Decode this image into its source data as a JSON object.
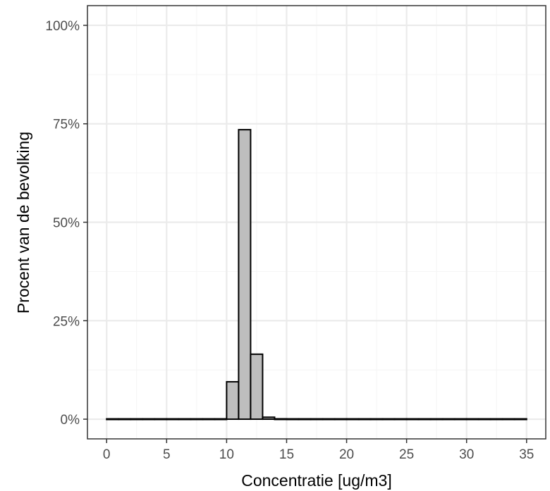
{
  "chart_data": {
    "type": "bar",
    "subtype": "histogram",
    "xlabel": "Concentratie [ug/m3]",
    "ylabel": "Procent van de bevolking",
    "xlim": [
      -1.6,
      36.6
    ],
    "ylim": [
      -0.05,
      1.05
    ],
    "x_ticks": [
      0,
      5,
      10,
      15,
      20,
      25,
      30,
      35
    ],
    "x_tick_labels": [
      "0",
      "5",
      "10",
      "15",
      "20",
      "25",
      "30",
      "35"
    ],
    "y_ticks": [
      0,
      0.25,
      0.5,
      0.75,
      1.0
    ],
    "y_tick_labels": [
      "0%",
      "25%",
      "50%",
      "75%",
      "100%"
    ],
    "y_minor_ticks": [
      0.125,
      0.375,
      0.625,
      0.875
    ],
    "grid": true,
    "bin_width": 1,
    "bins": [
      {
        "x0": 0,
        "x1": 1,
        "value": 0
      },
      {
        "x0": 1,
        "x1": 2,
        "value": 0
      },
      {
        "x0": 2,
        "x1": 3,
        "value": 0
      },
      {
        "x0": 3,
        "x1": 4,
        "value": 0
      },
      {
        "x0": 4,
        "x1": 5,
        "value": 0
      },
      {
        "x0": 5,
        "x1": 6,
        "value": 0
      },
      {
        "x0": 6,
        "x1": 7,
        "value": 0
      },
      {
        "x0": 7,
        "x1": 8,
        "value": 0
      },
      {
        "x0": 8,
        "x1": 9,
        "value": 0
      },
      {
        "x0": 9,
        "x1": 10,
        "value": 0
      },
      {
        "x0": 10,
        "x1": 11,
        "value": 0.095
      },
      {
        "x0": 11,
        "x1": 12,
        "value": 0.735
      },
      {
        "x0": 12,
        "x1": 13,
        "value": 0.165
      },
      {
        "x0": 13,
        "x1": 14,
        "value": 0.005
      },
      {
        "x0": 14,
        "x1": 15,
        "value": 0.001
      },
      {
        "x0": 15,
        "x1": 16,
        "value": 0
      },
      {
        "x0": 16,
        "x1": 17,
        "value": 0
      },
      {
        "x0": 17,
        "x1": 18,
        "value": 0
      },
      {
        "x0": 18,
        "x1": 19,
        "value": 0
      },
      {
        "x0": 19,
        "x1": 20,
        "value": 0
      },
      {
        "x0": 20,
        "x1": 21,
        "value": 0
      },
      {
        "x0": 21,
        "x1": 22,
        "value": 0
      },
      {
        "x0": 22,
        "x1": 23,
        "value": 0
      },
      {
        "x0": 23,
        "x1": 24,
        "value": 0
      },
      {
        "x0": 24,
        "x1": 25,
        "value": 0
      },
      {
        "x0": 25,
        "x1": 26,
        "value": 0
      },
      {
        "x0": 26,
        "x1": 27,
        "value": 0
      },
      {
        "x0": 27,
        "x1": 28,
        "value": 0
      },
      {
        "x0": 28,
        "x1": 29,
        "value": 0
      },
      {
        "x0": 29,
        "x1": 30,
        "value": 0
      },
      {
        "x0": 30,
        "x1": 31,
        "value": 0
      },
      {
        "x0": 31,
        "x1": 32,
        "value": 0
      },
      {
        "x0": 32,
        "x1": 33,
        "value": 0
      },
      {
        "x0": 33,
        "x1": 34,
        "value": 0
      },
      {
        "x0": 34,
        "x1": 35,
        "value": 0
      }
    ],
    "bar_fill": "#bebebe",
    "bar_stroke": "#000000",
    "panel_border": "#333333",
    "grid_major_color": "#ebebeb",
    "grid_minor_color": "#f5f5f5"
  }
}
